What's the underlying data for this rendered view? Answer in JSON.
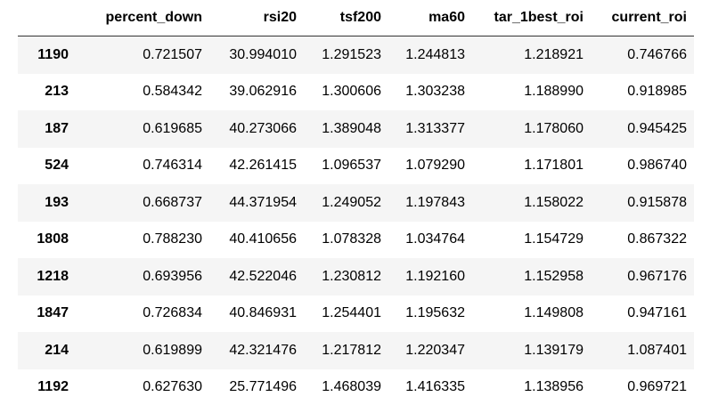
{
  "table": {
    "columns": [
      "",
      "percent_down",
      "rsi20",
      "tsf200",
      "ma60",
      "tar_1best_roi",
      "current_roi"
    ],
    "rows": [
      {
        "index": "1190",
        "values": [
          "0.721507",
          "30.994010",
          "1.291523",
          "1.244813",
          "1.218921",
          "0.746766"
        ]
      },
      {
        "index": "213",
        "values": [
          "0.584342",
          "39.062916",
          "1.300606",
          "1.303238",
          "1.188990",
          "0.918985"
        ]
      },
      {
        "index": "187",
        "values": [
          "0.619685",
          "40.273066",
          "1.389048",
          "1.313377",
          "1.178060",
          "0.945425"
        ]
      },
      {
        "index": "524",
        "values": [
          "0.746314",
          "42.261415",
          "1.096537",
          "1.079290",
          "1.171801",
          "0.986740"
        ]
      },
      {
        "index": "193",
        "values": [
          "0.668737",
          "44.371954",
          "1.249052",
          "1.197843",
          "1.158022",
          "0.915878"
        ]
      },
      {
        "index": "1808",
        "values": [
          "0.788230",
          "40.410656",
          "1.078328",
          "1.034764",
          "1.154729",
          "0.867322"
        ]
      },
      {
        "index": "1218",
        "values": [
          "0.693956",
          "42.522046",
          "1.230812",
          "1.192160",
          "1.152958",
          "0.967176"
        ]
      },
      {
        "index": "1847",
        "values": [
          "0.726834",
          "40.846931",
          "1.254401",
          "1.195632",
          "1.149808",
          "0.947161"
        ]
      },
      {
        "index": "214",
        "values": [
          "0.619899",
          "42.321476",
          "1.217812",
          "1.220347",
          "1.139179",
          "1.087401"
        ]
      },
      {
        "index": "1192",
        "values": [
          "0.627630",
          "25.771496",
          "1.468039",
          "1.416335",
          "1.138956",
          "0.969721"
        ]
      }
    ]
  }
}
